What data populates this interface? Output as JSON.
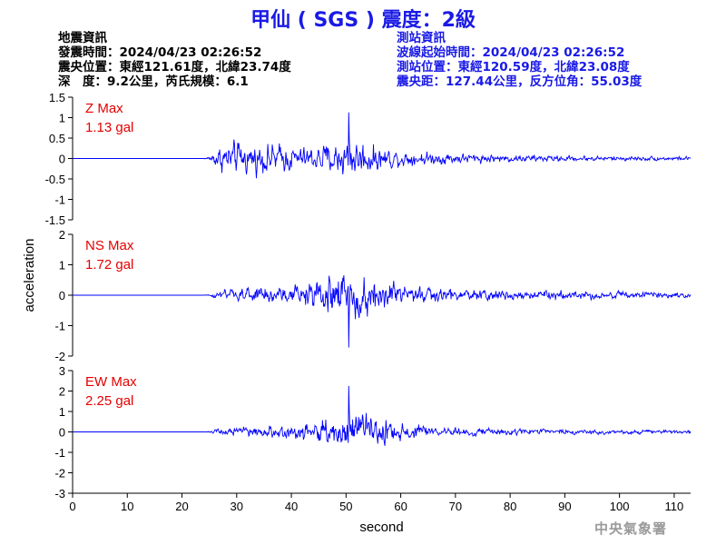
{
  "title": "甲仙 ( SGS ) 震度：2級",
  "earthquake_info": {
    "heading": "地震資訊",
    "origin_time": "發震時間：2024/04/23 02:26:52",
    "epicenter": "震央位置：東經121.61度，北緯23.74度",
    "depth_magnitude": "深　度：9.2公里，芮氏規模：6.1"
  },
  "station_info": {
    "heading": "測站資訊",
    "wave_start_time": "波線起始時間：2024/04/23 02:26:52",
    "station_location": "測站位置：東經120.59度，北緯23.08度",
    "distance_azimuth": "震央距：127.44公里，反方位角：55.03度"
  },
  "watermark": "中央氣象署",
  "colors": {
    "trace": "#0000ff",
    "max_label": "#e60000",
    "title": "#1a1ae6",
    "axes": "#000000"
  },
  "chart_data": {
    "type": "line",
    "xlabel": "second",
    "ylabel": "acceleration",
    "xlim": [
      0,
      113
    ],
    "xticks": [
      0,
      10,
      20,
      30,
      40,
      50,
      60,
      70,
      80,
      90,
      100,
      110
    ],
    "grid": false,
    "legend": "none",
    "panels": [
      {
        "component": "Z",
        "max_label": "Z Max",
        "max_value": "1.13 gal",
        "ylim": [
          -1.5,
          1.5
        ],
        "yticks": [
          -1.5,
          -1,
          -0.5,
          0,
          0.5,
          1,
          1.5
        ],
        "ytick_labels": [
          "-1.5",
          "-1",
          "-0.5",
          "0",
          "0.5",
          "1",
          "1.5"
        ],
        "peak": 1.13,
        "envelope": [
          [
            0,
            0
          ],
          [
            24,
            0
          ],
          [
            25,
            0.12
          ],
          [
            27,
            0.55
          ],
          [
            30,
            0.7
          ],
          [
            33,
            0.6
          ],
          [
            37,
            0.65
          ],
          [
            42,
            0.45
          ],
          [
            47,
            0.65
          ],
          [
            50,
            0.85
          ],
          [
            53,
            0.75
          ],
          [
            56,
            0.5
          ],
          [
            60,
            0.35
          ],
          [
            65,
            0.28
          ],
          [
            70,
            0.22
          ],
          [
            80,
            0.16
          ],
          [
            90,
            0.13
          ],
          [
            100,
            0.1
          ],
          [
            113,
            0.08
          ]
        ]
      },
      {
        "component": "NS",
        "max_label": "NS Max",
        "max_value": "1.72 gal",
        "ylim": [
          -2,
          2
        ],
        "yticks": [
          -2,
          -1,
          0,
          1,
          2
        ],
        "ytick_labels": [
          "-2",
          "-1",
          "0",
          "1",
          "2"
        ],
        "peak": 1.72,
        "envelope": [
          [
            0,
            0
          ],
          [
            24,
            0
          ],
          [
            25,
            0.08
          ],
          [
            28,
            0.3
          ],
          [
            32,
            0.45
          ],
          [
            38,
            0.5
          ],
          [
            43,
            0.7
          ],
          [
            46,
            1.1
          ],
          [
            49,
            1.4
          ],
          [
            52,
            1.3
          ],
          [
            55,
            1.2
          ],
          [
            58,
            0.9
          ],
          [
            61,
            0.6
          ],
          [
            65,
            0.45
          ],
          [
            70,
            0.35
          ],
          [
            80,
            0.28
          ],
          [
            90,
            0.25
          ],
          [
            100,
            0.2
          ],
          [
            113,
            0.15
          ]
        ]
      },
      {
        "component": "EW",
        "max_label": "EW Max",
        "max_value": "2.25 gal",
        "ylim": [
          -3,
          3
        ],
        "yticks": [
          -3,
          -2,
          -1,
          0,
          1,
          2,
          3
        ],
        "ytick_labels": [
          "-3",
          "-2",
          "-1",
          "0",
          "1",
          "2",
          "3"
        ],
        "peak": 2.25,
        "envelope": [
          [
            0,
            0
          ],
          [
            24,
            0
          ],
          [
            25,
            0.12
          ],
          [
            28,
            0.35
          ],
          [
            32,
            0.5
          ],
          [
            37,
            0.6
          ],
          [
            42,
            0.7
          ],
          [
            46,
            1.0
          ],
          [
            49,
            1.5
          ],
          [
            52,
            1.6
          ],
          [
            55,
            1.4
          ],
          [
            58,
            1.0
          ],
          [
            62,
            0.6
          ],
          [
            66,
            0.45
          ],
          [
            70,
            0.35
          ],
          [
            80,
            0.28
          ],
          [
            90,
            0.22
          ],
          [
            100,
            0.18
          ],
          [
            113,
            0.15
          ]
        ]
      }
    ]
  }
}
